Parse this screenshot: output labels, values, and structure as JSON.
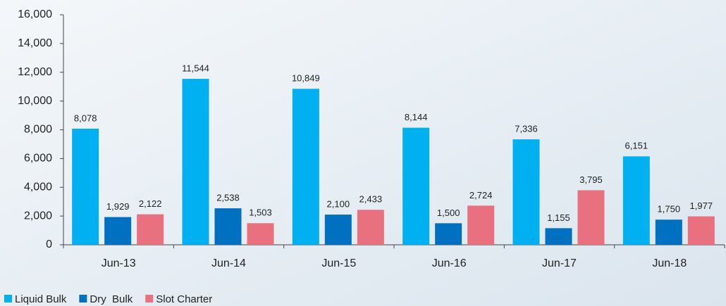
{
  "chart_data": {
    "type": "bar",
    "categories": [
      "Jun-13",
      "Jun-14",
      "Jun-15",
      "Jun-16",
      "Jun-17",
      "Jun-18"
    ],
    "series": [
      {
        "name": "Liquid Bulk",
        "color": "#00b0f0",
        "values": [
          8078,
          11544,
          10849,
          8144,
          7336,
          6151
        ],
        "value_labels": [
          "8,078",
          "11,544",
          "10,849",
          "8,144",
          "7,336",
          "6,151"
        ]
      },
      {
        "name": "Dry  Bulk",
        "color": "#0070c0",
        "values": [
          1929,
          2538,
          2100,
          1500,
          1155,
          1750
        ],
        "value_labels": [
          "1,929",
          "2,538",
          "2,100",
          "1,500",
          "1,155",
          "1,750"
        ]
      },
      {
        "name": "Slot Charter",
        "color": "#e8707f",
        "values": [
          2122,
          1503,
          2433,
          2724,
          3795,
          1977
        ],
        "value_labels": [
          "2,122",
          "1,503",
          "2,433",
          "2,724",
          "3,795",
          "1,977"
        ]
      }
    ],
    "ylim": [
      0,
      16000
    ],
    "yticks": [
      0,
      {
        "value": 2000,
        "label": "2,000"
      },
      {
        "value": 4000,
        "label": "4,000"
      },
      {
        "value": 6000,
        "label": "6,000"
      },
      {
        "value": 8000,
        "label": "8,000"
      },
      {
        "value": 10000,
        "label": "10,000"
      },
      {
        "value": 12000,
        "label": "12,000"
      },
      {
        "value": 14000,
        "label": "14,000"
      },
      {
        "value": 16000,
        "label": "16,000"
      }
    ],
    "legend": "bottom-left"
  }
}
